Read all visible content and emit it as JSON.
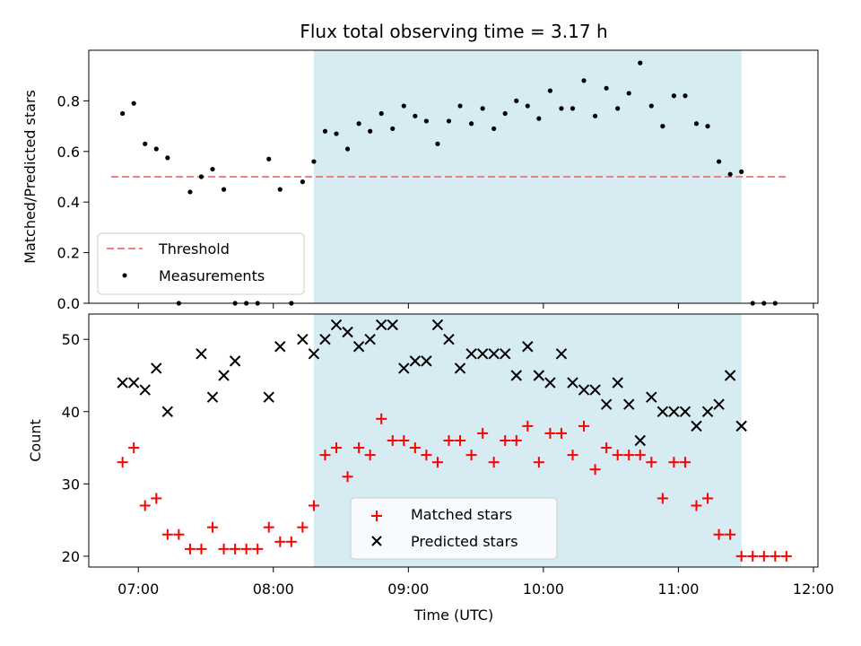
{
  "title": "Flux total observing time = 3.17 h",
  "colors": {
    "threshold": "#f08080",
    "measurement": "#000000",
    "matched": "#ff0000",
    "predicted": "#000000",
    "span": "#add8e6"
  },
  "chart_data": [
    {
      "type": "scatter",
      "ylabel": "Matched/Predicted stars",
      "ylim": [
        0.0,
        1.0
      ],
      "yticks": [
        "0.0",
        "0.2",
        "0.4",
        "0.6",
        "0.8"
      ],
      "x_axis": "time",
      "xlim": [
        "06:38",
        "12:02"
      ],
      "shaded_span": [
        "08:18",
        "11:28"
      ],
      "legend": {
        "placement": "lower left",
        "entries": [
          "Threshold",
          "Measurements"
        ]
      },
      "threshold": {
        "name": "Threshold",
        "x": [
          "06:48",
          "11:48"
        ],
        "y": 0.5,
        "style": "dashed"
      },
      "series": [
        {
          "name": "Measurements",
          "x": [
            "06:53",
            "06:58",
            "07:03",
            "07:08",
            "07:13",
            "07:18",
            "07:23",
            "07:28",
            "07:33",
            "07:38",
            "07:43",
            "07:48",
            "07:53",
            "07:58",
            "08:03",
            "08:08",
            "08:13",
            "08:18",
            "08:23",
            "08:28",
            "08:33",
            "08:38",
            "08:43",
            "08:48",
            "08:53",
            "08:58",
            "09:03",
            "09:08",
            "09:13",
            "09:18",
            "09:23",
            "09:28",
            "09:33",
            "09:38",
            "09:43",
            "09:48",
            "09:53",
            "09:58",
            "10:03",
            "10:08",
            "10:13",
            "10:18",
            "10:23",
            "10:28",
            "10:33",
            "10:38",
            "10:43",
            "10:48",
            "10:53",
            "10:58",
            "11:03",
            "11:08",
            "11:13",
            "11:18",
            "11:23",
            "11:28",
            "11:33",
            "11:38",
            "11:43"
          ],
          "y": [
            0.75,
            0.79,
            0.63,
            0.61,
            0.575,
            0.0,
            0.44,
            0.5,
            0.53,
            0.45,
            0.0,
            0.0,
            0.0,
            0.57,
            0.45,
            0.0,
            0.48,
            0.56,
            0.68,
            0.67,
            0.61,
            0.71,
            0.68,
            0.75,
            0.69,
            0.78,
            0.74,
            0.72,
            0.63,
            0.72,
            0.78,
            0.71,
            0.77,
            0.69,
            0.75,
            0.8,
            0.78,
            0.73,
            0.84,
            0.77,
            0.77,
            0.88,
            0.74,
            0.85,
            0.77,
            0.83,
            0.95,
            0.78,
            0.7,
            0.82,
            0.82,
            0.71,
            0.7,
            0.56,
            0.51,
            0.52,
            0.0,
            0.0,
            0.0
          ]
        }
      ]
    },
    {
      "type": "scatter",
      "ylabel": "Count",
      "xlabel": "Time (UTC)",
      "ylim": [
        18.5,
        53.5
      ],
      "yticks": [
        "20",
        "30",
        "40",
        "50"
      ],
      "x_axis": "time",
      "xlim": [
        "06:38",
        "12:02"
      ],
      "xticks": [
        "07:00",
        "08:00",
        "09:00",
        "10:00",
        "11:00",
        "12:00"
      ],
      "shaded_span": [
        "08:18",
        "11:28"
      ],
      "legend": {
        "placement": "lower center",
        "entries": [
          "Matched stars",
          "Predicted stars"
        ]
      },
      "series": [
        {
          "name": "Matched stars",
          "marker": "+",
          "x": [
            "06:53",
            "06:58",
            "07:03",
            "07:08",
            "07:13",
            "07:18",
            "07:23",
            "07:28",
            "07:33",
            "07:38",
            "07:43",
            "07:48",
            "07:53",
            "07:58",
            "08:03",
            "08:08",
            "08:13",
            "08:18",
            "08:23",
            "08:28",
            "08:33",
            "08:38",
            "08:43",
            "08:48",
            "08:53",
            "08:58",
            "09:03",
            "09:08",
            "09:13",
            "09:18",
            "09:23",
            "09:28",
            "09:33",
            "09:38",
            "09:43",
            "09:48",
            "09:53",
            "09:58",
            "10:03",
            "10:08",
            "10:13",
            "10:18",
            "10:23",
            "10:28",
            "10:33",
            "10:38",
            "10:43",
            "10:48",
            "10:53",
            "10:58",
            "11:03",
            "11:08",
            "11:13",
            "11:18",
            "11:23",
            "11:28",
            "11:33",
            "11:38",
            "11:43",
            "11:48"
          ],
          "y": [
            33,
            35,
            27,
            28,
            23,
            23,
            21,
            21,
            24,
            21,
            21,
            21,
            21,
            24,
            22,
            22,
            24,
            27,
            34,
            35,
            31,
            35,
            34,
            39,
            36,
            36,
            35,
            34,
            33,
            36,
            36,
            34,
            37,
            33,
            36,
            36,
            38,
            33,
            37,
            37,
            34,
            38,
            32,
            35,
            34,
            34,
            34,
            33,
            28,
            33,
            33,
            27,
            28,
            23,
            23,
            20,
            20,
            20,
            20,
            20
          ]
        },
        {
          "name": "Predicted stars",
          "marker": "x",
          "x": [
            "06:53",
            "06:58",
            "07:03",
            "07:08",
            "07:13",
            "07:28",
            "07:33",
            "07:38",
            "07:43",
            "07:58",
            "08:03",
            "08:13",
            "08:18",
            "08:23",
            "08:28",
            "08:33",
            "08:38",
            "08:43",
            "08:48",
            "08:53",
            "08:58",
            "09:03",
            "09:08",
            "09:13",
            "09:18",
            "09:23",
            "09:28",
            "09:33",
            "09:38",
            "09:43",
            "09:48",
            "09:53",
            "09:58",
            "10:03",
            "10:08",
            "10:13",
            "10:18",
            "10:23",
            "10:28",
            "10:33",
            "10:38",
            "10:43",
            "10:48",
            "10:53",
            "10:58",
            "11:03",
            "11:08",
            "11:13",
            "11:18",
            "11:23",
            "11:28"
          ],
          "y": [
            44,
            44,
            43,
            46,
            40,
            48,
            42,
            45,
            47,
            42,
            49,
            50,
            48,
            50,
            52,
            51,
            49,
            50,
            52,
            52,
            46,
            47,
            47,
            52,
            50,
            46,
            48,
            48,
            48,
            48,
            45,
            49,
            45,
            44,
            48,
            44,
            43,
            43,
            41,
            44,
            41,
            36,
            42,
            40,
            40,
            40,
            38,
            40,
            41,
            45,
            38
          ]
        }
      ]
    }
  ]
}
